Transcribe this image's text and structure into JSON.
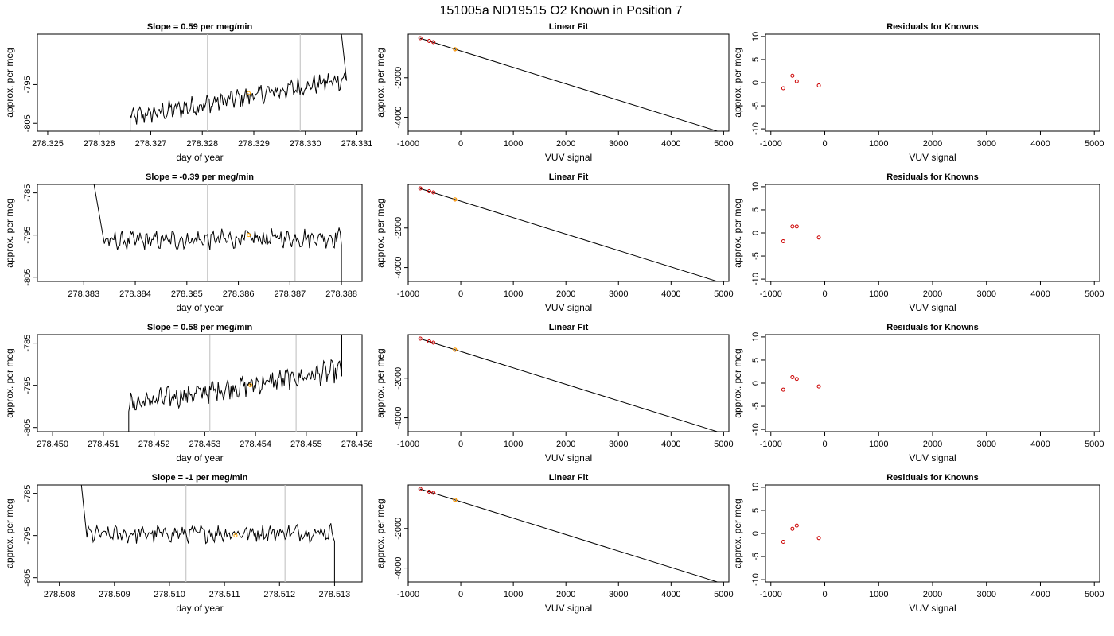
{
  "figure": {
    "title": "151005a     ND19515   O2 Known in Position  7"
  },
  "colors": {
    "trace": "#000000",
    "vline": "#c8c8c8",
    "known": "#cc0000",
    "sample": "#ffa500",
    "fit": "#000000"
  },
  "chart_data": [
    {
      "type": "line",
      "panel": "timeseries",
      "row": 0,
      "title": "Slope =  0.59  per meg/min",
      "xlabel": "day of year",
      "ylabel": "approx. per meg",
      "xlim": [
        278.3248,
        278.3311
      ],
      "ylim": [
        -807,
        -782
      ],
      "xticks": [
        "278.325",
        "278.326",
        "278.327",
        "278.328",
        "278.329",
        "278.330",
        "278.331"
      ],
      "yticks": [
        -795,
        -805
      ],
      "vlines": [
        278.3281,
        278.3299
      ],
      "start": 278.3266,
      "end": 278.3308,
      "level_start": -803.5,
      "level_end": -793.5,
      "amp": 2.0,
      "spike_start": 278.3266,
      "spike_start_val": -808,
      "spike_end": 278.3307,
      "spike_end_val": -782,
      "sample_point": {
        "x": 278.3289,
        "y": -797.2
      }
    },
    {
      "type": "line",
      "panel": "timeseries",
      "row": 1,
      "title": "Slope =  -0.39  per meg/min",
      "xlabel": "day of year",
      "ylabel": "approx. per meg",
      "xlim": [
        278.3821,
        278.3884
      ],
      "ylim": [
        -806,
        -783
      ],
      "xticks": [
        "278.383",
        "278.384",
        "278.385",
        "278.386",
        "278.387",
        "278.388"
      ],
      "yticks": [
        -785,
        -795,
        -805
      ],
      "vlines": [
        278.3854,
        278.3871
      ],
      "start": 278.3834,
      "end": 278.388,
      "level_start": -796.5,
      "level_end": -795.5,
      "amp": 1.8,
      "spike_start": 278.3832,
      "spike_start_val": -783,
      "spike_end": 278.388,
      "spike_end_val": -806,
      "sample_point": {
        "x": 278.3862,
        "y": -795.0
      }
    },
    {
      "type": "line",
      "panel": "timeseries",
      "row": 2,
      "title": "Slope =  0.58  per meg/min",
      "xlabel": "day of year",
      "ylabel": "approx. per meg",
      "xlim": [
        278.4497,
        278.4561
      ],
      "ylim": [
        -806,
        -783
      ],
      "xticks": [
        "278.450",
        "278.451",
        "278.452",
        "278.453",
        "278.454",
        "278.455",
        "278.456"
      ],
      "yticks": [
        -785,
        -795,
        -805
      ],
      "vlines": [
        278.4531,
        278.4548
      ],
      "start": 278.4515,
      "end": 278.4557,
      "level_start": -799.5,
      "level_end": -791.5,
      "amp": 2.0,
      "spike_start": 278.4515,
      "spike_start_val": -806,
      "spike_end": 278.4557,
      "spike_end_val": -783,
      "sample_point": {
        "x": 278.4539,
        "y": -795.0
      }
    },
    {
      "type": "line",
      "panel": "timeseries",
      "row": 3,
      "title": "Slope =  -1  per meg/min",
      "xlabel": "day of year",
      "ylabel": "approx. per meg",
      "xlim": [
        278.5076,
        278.5135
      ],
      "ylim": [
        -806,
        -783
      ],
      "xticks": [
        "278.508",
        "278.509",
        "278.510",
        "278.511",
        "278.512",
        "278.513"
      ],
      "yticks": [
        -785,
        -795,
        -805
      ],
      "vlines": [
        278.5103,
        278.5121
      ],
      "start": 278.5085,
      "end": 278.513,
      "level_start": -794.8,
      "level_end": -794.2,
      "amp": 1.6,
      "spike_start": 278.5084,
      "spike_start_val": -783,
      "spike_end": 278.513,
      "spike_end_val": -806,
      "sample_point": {
        "x": 278.5112,
        "y": -795.0
      }
    },
    {
      "type": "scatter",
      "panel": "fit",
      "row": 0,
      "title": "Linear Fit",
      "xlabel": "VUV signal",
      "ylabel": "approx. per meg",
      "xlim": [
        -1000,
        5100
      ],
      "ylim": [
        -4700,
        200
      ],
      "xticks": [
        -1000,
        0,
        1000,
        2000,
        3000,
        4000,
        5000
      ],
      "yticks": [
        -2000,
        -4000
      ],
      "line": {
        "x0": -780,
        "y0": 0,
        "x1": 4880,
        "y1": -4700
      },
      "knowns": [
        {
          "x": -770,
          "y": 0
        },
        {
          "x": -600,
          "y": -140
        },
        {
          "x": -520,
          "y": -200
        },
        {
          "x": -110,
          "y": -560
        }
      ],
      "sample": {
        "x": -110,
        "y": -555
      }
    },
    {
      "type": "scatter",
      "panel": "fit",
      "row": 1,
      "title": "Linear Fit",
      "xlabel": "VUV signal",
      "ylabel": "approx. per meg",
      "xlim": [
        -1000,
        5100
      ],
      "ylim": [
        -4700,
        200
      ],
      "xticks": [
        -1000,
        0,
        1000,
        2000,
        3000,
        4000,
        5000
      ],
      "yticks": [
        -2000,
        -4000
      ],
      "line": {
        "x0": -780,
        "y0": 0,
        "x1": 4880,
        "y1": -4700
      },
      "knowns": [
        {
          "x": -770,
          "y": 0
        },
        {
          "x": -600,
          "y": -140
        },
        {
          "x": -520,
          "y": -200
        },
        {
          "x": -110,
          "y": -560
        }
      ],
      "sample": {
        "x": -110,
        "y": -555
      }
    },
    {
      "type": "scatter",
      "panel": "fit",
      "row": 2,
      "title": "Linear Fit",
      "xlabel": "VUV signal",
      "ylabel": "approx. per meg",
      "xlim": [
        -1000,
        5100
      ],
      "ylim": [
        -4700,
        200
      ],
      "xticks": [
        -1000,
        0,
        1000,
        2000,
        3000,
        4000,
        5000
      ],
      "yticks": [
        -2000,
        -4000
      ],
      "line": {
        "x0": -780,
        "y0": 0,
        "x1": 4880,
        "y1": -4700
      },
      "knowns": [
        {
          "x": -770,
          "y": 0
        },
        {
          "x": -600,
          "y": -140
        },
        {
          "x": -520,
          "y": -200
        },
        {
          "x": -110,
          "y": -560
        }
      ],
      "sample": {
        "x": -110,
        "y": -555
      }
    },
    {
      "type": "scatter",
      "panel": "fit",
      "row": 3,
      "title": "Linear Fit",
      "xlabel": "VUV signal",
      "ylabel": "approx. per meg",
      "xlim": [
        -1000,
        5100
      ],
      "ylim": [
        -4700,
        200
      ],
      "xticks": [
        -1000,
        0,
        1000,
        2000,
        3000,
        4000,
        5000
      ],
      "yticks": [
        -2000,
        -4000
      ],
      "line": {
        "x0": -780,
        "y0": 0,
        "x1": 4880,
        "y1": -4700
      },
      "knowns": [
        {
          "x": -770,
          "y": 0
        },
        {
          "x": -600,
          "y": -140
        },
        {
          "x": -520,
          "y": -200
        },
        {
          "x": -110,
          "y": -560
        }
      ],
      "sample": {
        "x": -110,
        "y": -555
      }
    },
    {
      "type": "scatter",
      "panel": "residuals",
      "row": 0,
      "title": "Residuals for Knowns",
      "xlabel": "VUV signal",
      "ylabel": "approx. per meg",
      "xlim": [
        -1100,
        5100
      ],
      "ylim": [
        -10.5,
        10.5
      ],
      "xticks": [
        -1000,
        0,
        1000,
        2000,
        3000,
        4000,
        5000
      ],
      "yticks": [
        -10,
        -5,
        0,
        5,
        10
      ],
      "points": [
        {
          "x": -770,
          "y": -1.2
        },
        {
          "x": -600,
          "y": 1.5
        },
        {
          "x": -520,
          "y": 0.3
        },
        {
          "x": -110,
          "y": -0.6
        }
      ]
    },
    {
      "type": "scatter",
      "panel": "residuals",
      "row": 1,
      "title": "Residuals for Knowns",
      "xlabel": "VUV signal",
      "ylabel": "approx. per meg",
      "xlim": [
        -1100,
        5100
      ],
      "ylim": [
        -10.5,
        10.5
      ],
      "xticks": [
        -1000,
        0,
        1000,
        2000,
        3000,
        4000,
        5000
      ],
      "yticks": [
        -10,
        -5,
        0,
        5,
        10
      ],
      "points": [
        {
          "x": -770,
          "y": -1.8
        },
        {
          "x": -600,
          "y": 1.4
        },
        {
          "x": -520,
          "y": 1.4
        },
        {
          "x": -110,
          "y": -1.0
        }
      ]
    },
    {
      "type": "scatter",
      "panel": "residuals",
      "row": 2,
      "title": "Residuals for Knowns",
      "xlabel": "VUV signal",
      "ylabel": "approx. per meg",
      "xlim": [
        -1100,
        5100
      ],
      "ylim": [
        -10.5,
        10.5
      ],
      "xticks": [
        -1000,
        0,
        1000,
        2000,
        3000,
        4000,
        5000
      ],
      "yticks": [
        -10,
        -5,
        0,
        5,
        10
      ],
      "points": [
        {
          "x": -770,
          "y": -1.4
        },
        {
          "x": -600,
          "y": 1.3
        },
        {
          "x": -520,
          "y": 0.9
        },
        {
          "x": -110,
          "y": -0.7
        }
      ]
    },
    {
      "type": "scatter",
      "panel": "residuals",
      "row": 3,
      "title": "Residuals for Knowns",
      "xlabel": "VUV signal",
      "ylabel": "approx. per meg",
      "xlim": [
        -1100,
        5100
      ],
      "ylim": [
        -10.5,
        10.5
      ],
      "xticks": [
        -1000,
        0,
        1000,
        2000,
        3000,
        4000,
        5000
      ],
      "yticks": [
        -10,
        -5,
        0,
        5,
        10
      ],
      "points": [
        {
          "x": -770,
          "y": -1.8
        },
        {
          "x": -600,
          "y": 1.0
        },
        {
          "x": -520,
          "y": 1.7
        },
        {
          "x": -110,
          "y": -1.0
        }
      ]
    }
  ]
}
